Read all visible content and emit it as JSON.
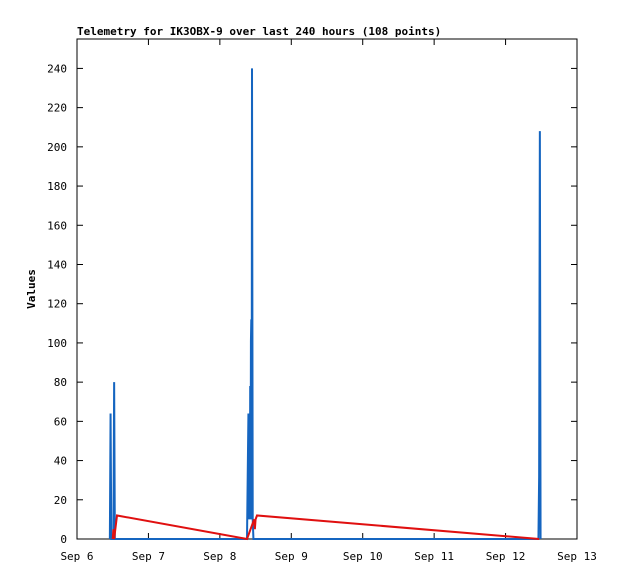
{
  "chart_data": {
    "type": "line",
    "title": "Telemetry for IK3OBX-9 over last 240 hours (108 points)",
    "y_label": "Values",
    "xlim": [
      6,
      13
    ],
    "xticks": [
      {
        "value": 6,
        "label": "Sep 6"
      },
      {
        "value": 7,
        "label": "Sep 7"
      },
      {
        "value": 8,
        "label": "Sep 8"
      },
      {
        "value": 9,
        "label": "Sep 9"
      },
      {
        "value": 10,
        "label": "Sep 10"
      },
      {
        "value": 11,
        "label": "Sep 11"
      },
      {
        "value": 12,
        "label": "Sep 12"
      },
      {
        "value": 13,
        "label": "Sep 13"
      }
    ],
    "ylim": [
      0,
      255
    ],
    "yticks": [
      0,
      20,
      40,
      60,
      80,
      100,
      120,
      140,
      160,
      180,
      200,
      220,
      240
    ],
    "series": [
      {
        "color": "#1565c0",
        "x": [
          6.46,
          6.47,
          6.48,
          6.51,
          6.52,
          6.53,
          8.38,
          8.39,
          8.4,
          8.41,
          8.415,
          8.42,
          8.425,
          8.43,
          8.435,
          8.44,
          8.445,
          8.45,
          8.46,
          8.47,
          12.46,
          12.47,
          12.48,
          12.49
        ],
        "values": [
          0,
          64,
          0,
          0,
          80,
          0,
          0,
          32,
          64,
          10,
          56,
          10,
          78,
          10,
          101,
          112,
          10,
          240,
          10,
          0,
          0,
          32,
          208,
          0
        ]
      },
      {
        "color": "#e01010",
        "x": [
          6.5,
          6.51,
          6.52,
          6.56,
          8.38,
          8.48,
          8.49,
          8.5,
          8.52,
          12.47
        ],
        "values": [
          0,
          5,
          0,
          12,
          0,
          10,
          5,
          10,
          12,
          0
        ]
      }
    ]
  }
}
